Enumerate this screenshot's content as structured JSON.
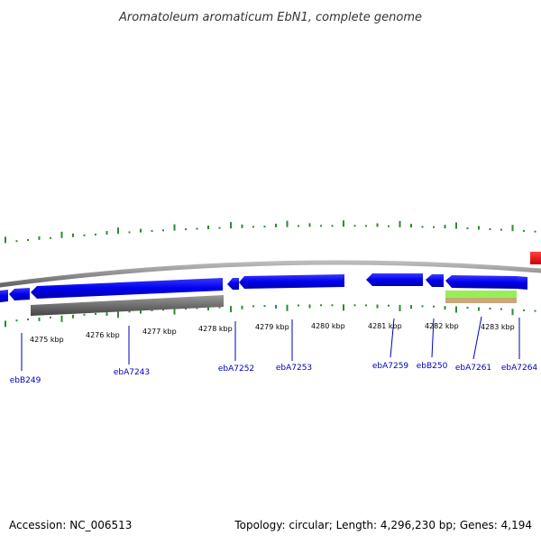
{
  "title": "Aromatoleum aromaticum EbN1, complete genome",
  "footer": {
    "accession": "Accession: NC_006513",
    "summary": "Topology: circular; Length: 4,296,230 bp; Genes: 4,194"
  },
  "scale_labels": [
    "4275 kbp",
    "4276 kbp",
    "4277 kbp",
    "4278 kbp",
    "4279 kbp",
    "4280 kbp",
    "4281 kbp",
    "4282 kbp",
    "4283 kbp"
  ],
  "gene_labels": [
    "ebB249",
    "ebA7243",
    "ebA7252",
    "ebA7253",
    "ebA7259",
    "ebB250",
    "ebA7261",
    "ebA7264"
  ],
  "colors": {
    "gene_forward": "#0000ee",
    "gene_reverse": "#0000ee",
    "backbone": "#888888",
    "gc_tick": "#2e8b2e",
    "feature_gray": "#666666",
    "feature_green": "#99ee55",
    "feature_tan": "#c8a878",
    "feature_red": "#ee0000",
    "label_link": "#0000bb"
  }
}
